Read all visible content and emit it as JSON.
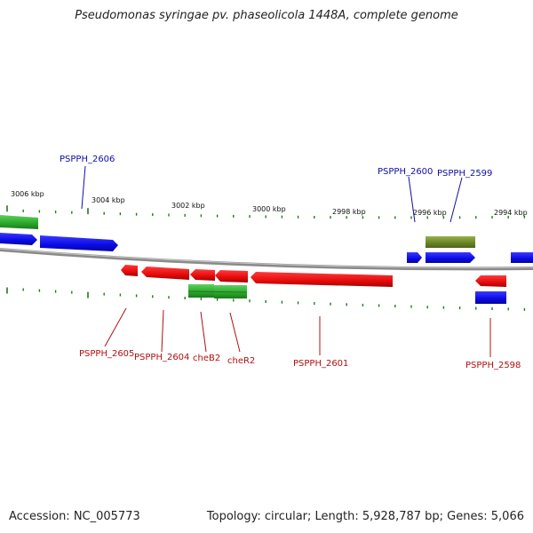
{
  "title": "Pseudomonas syringae pv. phaseolicola 1448A, complete genome",
  "footer": {
    "accession": "Accession: NC_005773",
    "summary": "Topology: circular; Length: 5,928,787 bp; Genes: 5,066"
  },
  "colors": {
    "forward_cds": "#0a0ae6",
    "reverse_cds": "#e60a0a",
    "rna_green": "#2fae2f",
    "olive": "#6f8a2a",
    "tick": "#1e7a1e",
    "backbone": "#8a8a8a",
    "label_blue": "#1010a0",
    "label_red": "#b01010"
  },
  "scale_labels": [
    "3006 kbp",
    "3004 kbp",
    "3002 kbp",
    "3000 kbp",
    "2998 kbp",
    "2996 kbp",
    "2994 kbp"
  ],
  "gene_labels": {
    "top": [
      "PSPPH_2606",
      "PSPPH_2600",
      "PSPPH_2599"
    ],
    "bottom": [
      "PSPPH_2605",
      "PSPPH_2604",
      "cheB2",
      "cheR2",
      "PSPPH_2601",
      "PSPPH_2598"
    ]
  }
}
